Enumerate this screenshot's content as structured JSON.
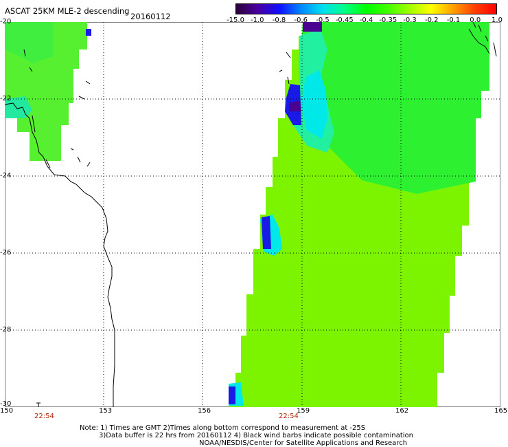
{
  "header": {
    "title": "ASCAT 25KM MLE-2 descending",
    "date": "20160112"
  },
  "colorbar": {
    "labels": [
      "-15.0",
      "-1.0",
      "-0.8",
      "-0.6",
      "-0.5",
      "-0.45",
      "-0.4",
      "-0.35",
      "-0.3",
      "-0.2",
      "-0.1",
      "0.0",
      "1.0"
    ],
    "colors": [
      "#2a0038",
      "#4a00a0",
      "#1010ff",
      "#0088ff",
      "#00e0f0",
      "#00ff88",
      "#00ff00",
      "#40ff00",
      "#a0ff00",
      "#ffff00",
      "#ffa000",
      "#ff4000",
      "#ff0000"
    ]
  },
  "axes": {
    "lat_labels": [
      "-20",
      "-22",
      "-24",
      "-26",
      "-28",
      "-30"
    ],
    "lon_labels": [
      "150",
      "153",
      "156",
      "159",
      "162",
      "165"
    ]
  },
  "times": [
    "22:54",
    "22:54"
  ],
  "notes": {
    "line1": "Note: 1) Times are GMT 2)Times along bottom correspond to measurement at -25S",
    "line2": "3)Data buffer is 22 hrs from 20160112 4) Black wind barbs indicate possible contamination",
    "line3": "NOAA/NESDIS/Center for Satellite Applications and Research"
  },
  "swath_colors": {
    "main": "#7cf400",
    "green": "#2cf030",
    "cyan": "#00e8e8",
    "blue": "#1a1ae6",
    "violet": "#4a0090"
  }
}
